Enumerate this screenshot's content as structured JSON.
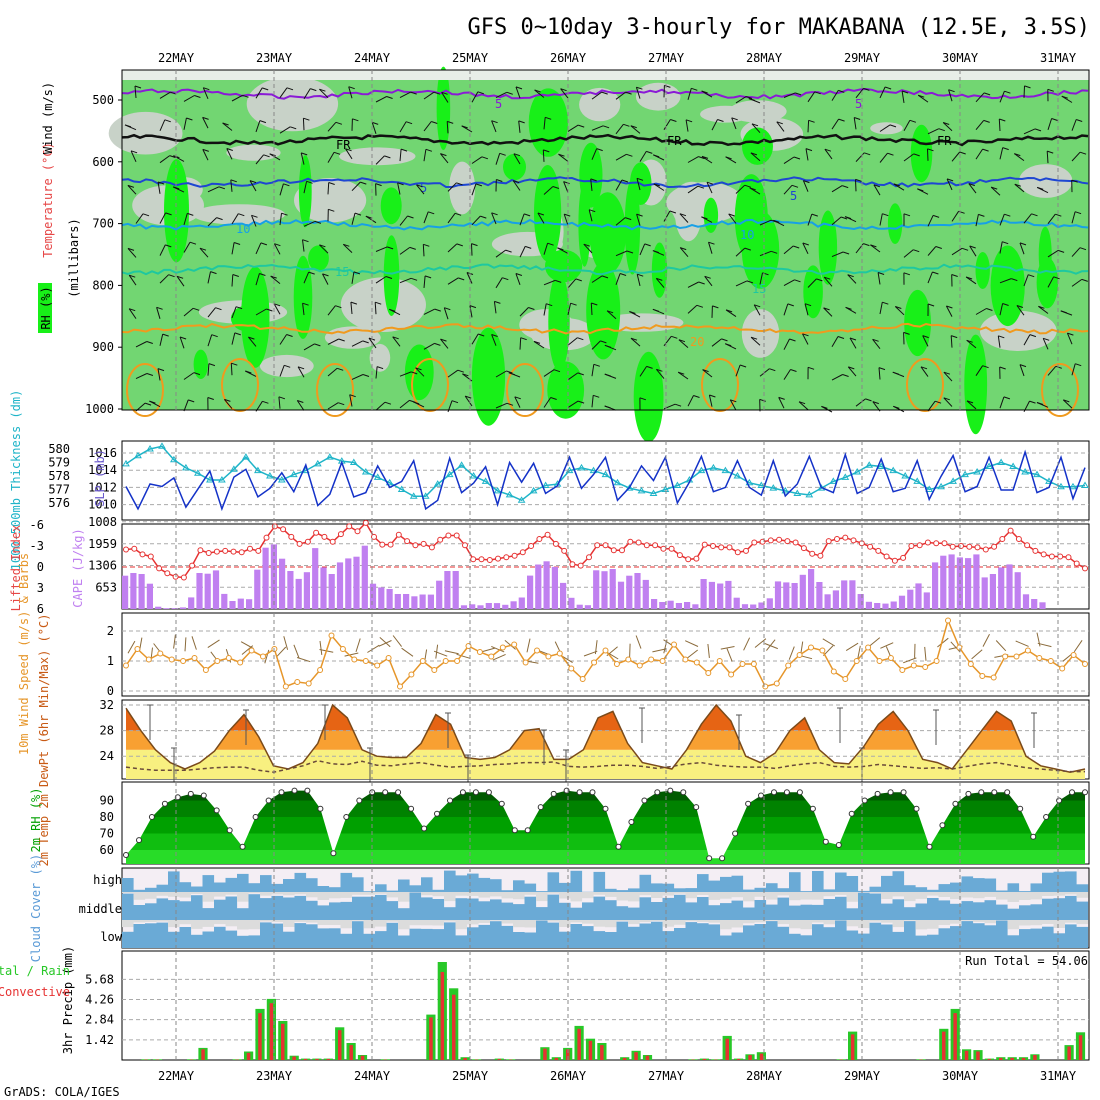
{
  "title": "GFS 0~10day 3-hourly for MAKABANA (12.5E, 3.5S)",
  "credit": "GrADS: COLA/IGES",
  "run_total_label": "Run Total = 54.06",
  "colors": {
    "rh_green_light": "#72d672",
    "rh_green_bright": "#18f018",
    "rh_grey": "#c8d2c8",
    "temp_purple": "#8a1ad6",
    "temp_blue": "#1e46d2",
    "temp_cyan": "#17a0e6",
    "temp_teal": "#1ec8a0",
    "temp_orange": "#f09a1e",
    "slp_blue": "#1432c8",
    "thickness_cyan": "#1eb4c8",
    "lifted_red": "#e63232",
    "cape_purple": "#c080f0",
    "wind_orange": "#e6962a",
    "temp_fill_dark": "#e66414",
    "temp_fill_mid": "#f8a032",
    "temp_fill_light": "#f8f080",
    "rh2m_dark": "#009600",
    "cloud_blue": "#6aaad6",
    "cloud_grey": "#dcdcdc",
    "cloud_pale": "#f4eef4",
    "precip_green": "#28c828",
    "precip_red": "#e63232"
  },
  "chart_data": [
    {
      "id": "upper-air",
      "type": "heatmap",
      "ylabel_parts": [
        "RH (%)",
        "Temperature (°C)",
        "Wind (m/s)",
        "(millibars)"
      ],
      "ylim": [
        1000,
        450
      ],
      "yticks": [
        "500",
        "600",
        "700",
        "800",
        "900",
        "1000"
      ],
      "xlabels": [
        "22MAY",
        "23MAY",
        "24MAY",
        "25MAY",
        "26MAY",
        "27MAY",
        "28MAY",
        "29MAY",
        "30MAY",
        "31MAY"
      ],
      "freezing_label": "FR",
      "isotherm_labels": [
        "5",
        "5",
        "5",
        "5",
        "10",
        "10",
        "15",
        "15",
        "20"
      ],
      "isotherms": [
        {
          "value": 5,
          "level_mb": 490
        },
        {
          "value": 0,
          "level_mb": 565
        },
        {
          "value": -5,
          "level_mb": 633
        },
        {
          "value": 10,
          "level_mb": 702
        },
        {
          "value": 15,
          "level_mb": 774
        },
        {
          "value": 20,
          "level_mb": 870
        }
      ]
    },
    {
      "id": "slp-thickness",
      "type": "line",
      "ylabel_left": "1000-500mb Thickness (dm)",
      "ylabel_right": "SLP (mb)",
      "thickness_ticks": [
        "580",
        "579",
        "578",
        "577",
        "576"
      ],
      "slp_ticks": [
        "1016",
        "1014",
        "1012",
        "1010",
        "1008"
      ],
      "series": [
        {
          "name": "SLP",
          "values": [
            1012.1,
            1009.5,
            1012.4,
            1012.1,
            1013.1,
            1009.7,
            1011.8,
            1013.9,
            1009.5,
            1013.2,
            1014.1,
            1010.9,
            1011.9,
            1013.7,
            1011.5,
            1014.6,
            1009.9,
            1011.2,
            1014.9,
            1010.9,
            1011.4,
            1014.5,
            1012.0,
            1012.7,
            1015.1,
            1009.5,
            1010.5,
            1015.4,
            1011.4,
            1012.5,
            1014.4,
            1010.0,
            1014.9,
            1012.6,
            1014.8,
            1011.3,
            1012.2,
            1015.5,
            1011.9,
            1013.5,
            1015.5,
            1010.5,
            1012.0,
            1014.5,
            1012.8,
            1015.5,
            1010.2,
            1012.6,
            1015.6,
            1011.5,
            1012.0,
            1015.1,
            1012.0,
            1011.1,
            1015.1,
            1011.0,
            1012.4,
            1015.6,
            1012.0,
            1011.4,
            1015.8,
            1011.3,
            1012.0,
            1015.3,
            1011.5,
            1011.9,
            1015.1,
            1010.6,
            1013.3,
            1015.7,
            1011.5,
            1012.1,
            1015.5,
            1011.7,
            1011.7,
            1016.1,
            1011.4,
            1012.0,
            1015.5,
            1010.7,
            1014.3
          ]
        },
        {
          "name": "Thickness",
          "values": [
            578.9,
            579.5,
            580.0,
            580.2,
            579.2,
            578.6,
            578.2,
            577.7,
            577.7,
            578.5,
            579.4,
            578.4,
            578.0,
            577.7,
            578.1,
            578.4,
            578.9,
            579.4,
            579.1,
            579.0,
            578.3,
            577.9,
            577.5,
            577.0,
            576.5,
            576.5,
            577.4,
            578.1,
            578.8,
            578.0,
            577.6,
            576.9,
            576.6,
            576.2,
            576.9,
            577.3,
            577.4,
            578.4,
            578.6,
            578.4,
            578.1,
            577.5,
            577.1,
            576.9,
            576.7,
            577.0,
            577.3,
            577.7,
            578.4,
            578.6,
            578.4,
            578.0,
            577.5,
            577.3,
            577.1,
            576.9,
            576.7,
            576.6,
            577.1,
            577.6,
            577.9,
            578.3,
            578.8,
            578.7,
            578.4,
            578.0,
            577.6,
            577.0,
            577.2,
            577.6,
            578.1,
            578.3,
            578.7,
            579.0,
            578.7,
            578.3,
            578.1,
            577.6,
            577.2,
            577.2,
            577.3
          ]
        }
      ]
    },
    {
      "id": "stability",
      "type": "bar",
      "ylabel_left": "Lifted Index",
      "ylabel_right": "CAPE (J/kg)",
      "li_ticks": [
        "-6",
        "-3",
        "0",
        "3",
        "6"
      ],
      "cape_ticks": [
        "1959",
        "1306",
        "653"
      ],
      "series": [
        {
          "name": "Lifted Index",
          "values": [
            -2.5,
            -2.6,
            -1.8,
            -1.5,
            0.2,
            0.9,
            1.4,
            1.5,
            -0.2,
            -2.4,
            -2.0,
            -2.2,
            -2.3,
            -2.2,
            -2.1,
            -2.6,
            -2.3,
            -4.2,
            -5.8,
            -5.4,
            -4.3,
            -3.3,
            -3.6,
            -4.9,
            -4.3,
            -3.6,
            -4.7,
            -5.8,
            -5.1,
            -6.3,
            -4.3,
            -3.2,
            -3.2,
            -4.6,
            -3.7,
            -3.1,
            -3.3,
            -2.8,
            -3.9,
            -4.5,
            -4.5,
            -3.1,
            -1.1,
            -1.1,
            -1.0,
            -1.2,
            -1.4,
            -1.6,
            -2.1,
            -3.0,
            -4.0,
            -4.6,
            -3.3,
            -2.3,
            -0.4,
            -0.2,
            -1.4,
            -3.1,
            -3.1,
            -2.4,
            -2.4,
            -3.6,
            -3.5,
            -3.1,
            -3.1,
            -2.6,
            -2.6,
            -1.7,
            -1.1,
            -1.2,
            -3.2,
            -3.0,
            -2.8,
            -2.8,
            -2.1,
            -2.3,
            -3.5,
            -3.6,
            -3.8,
            -3.9,
            -3.7,
            -3.5,
            -2.7,
            -1.9,
            -1.6,
            -3.7,
            -4.0,
            -4.2,
            -3.8,
            -3.4,
            -2.9,
            -2.3,
            -1.5,
            -0.9,
            -1.3,
            -3.0,
            -3.1,
            -3.5,
            -3.4,
            -3.4,
            -2.9,
            -3.0,
            -2.9,
            -2.8,
            -2.5,
            -2.9,
            -4.0,
            -5.2,
            -4.0,
            -3.1,
            -2.3,
            -1.8,
            -1.5,
            -1.5,
            -1.4,
            -0.5,
            0.2
          ]
        },
        {
          "name": "CAPE",
          "values": [
            1000,
            1080,
            1051,
            760,
            70,
            24,
            26,
            47,
            347,
            1081,
            1060,
            1160,
            452,
            240,
            312,
            295,
            1180,
            1840,
            1940,
            1510,
            1140,
            905,
            1104,
            1830,
            1250,
            1050,
            1400,
            1520,
            1570,
            1900,
            760,
            650,
            600,
            450,
            450,
            380,
            434,
            432,
            850,
            1140,
            1140,
            110,
            140,
            110,
            180,
            177,
            126,
            231,
            344,
            1003,
            1335,
            1431,
            1264,
            785,
            336,
            130,
            113,
            1161,
            1136,
            1200,
            820,
            1000,
            1080,
            875,
            300,
            210,
            250,
            180,
            209,
            140,
            900,
            813,
            767,
            845,
            340,
            145,
            134,
            196,
            320,
            830,
            800,
            782,
            1026,
            1200,
            810,
            440,
            560,
            860,
            863,
            450,
            217,
            180,
            161,
            226,
            400,
            580,
            770,
            500,
            1400,
            1600,
            1640,
            1550,
            1530,
            1640,
            950,
            1050,
            1250,
            1340,
            1104,
            440,
            300,
            200,
            0,
            0,
            0,
            0,
            0
          ]
        }
      ]
    },
    {
      "id": "wind10m",
      "type": "line",
      "ylabel": "10m Wind Speed (m/s) & Barbs",
      "yticks": [
        "2",
        "1",
        "0"
      ],
      "ylim": [
        0,
        2.5
      ],
      "series": [
        {
          "name": "10m wind speed",
          "values": [
            0.85,
            1.4,
            1.05,
            1.25,
            1.05,
            1.0,
            1.1,
            0.7,
            1.0,
            1.1,
            0.95,
            1.35,
            1.15,
            1.4,
            0.15,
            0.3,
            0.25,
            0.7,
            1.85,
            1.4,
            1.05,
            1.0,
            0.85,
            1.1,
            0.15,
            0.55,
            1.0,
            0.7,
            1.0,
            1.0,
            1.5,
            1.3,
            1.15,
            1.45,
            1.55,
            0.95,
            1.35,
            1.15,
            1.25,
            0.75,
            0.4,
            0.95,
            1.35,
            0.9,
            1.05,
            0.85,
            1.05,
            1.0,
            1.55,
            1.05,
            0.95,
            0.6,
            1.0,
            0.55,
            0.9,
            0.9,
            0.15,
            0.25,
            0.85,
            1.2,
            1.45,
            1.35,
            0.65,
            0.4,
            1.0,
            1.45,
            1.0,
            1.1,
            0.7,
            0.85,
            0.8,
            1.0,
            2.35,
            1.45,
            0.9,
            0.5,
            0.45,
            1.15,
            1.15,
            1.35,
            1.1,
            1.0,
            0.75,
            1.2,
            0.9
          ]
        }
      ]
    },
    {
      "id": "temp2m",
      "type": "area",
      "ylabel": "2m Temp 2m DewPt (6hr Min/Max) (°C)",
      "yticks": [
        "32",
        "28",
        "24"
      ],
      "ylim": [
        20.5,
        33
      ],
      "series": [
        {
          "name": "2m Temp",
          "values": [
            31.5,
            28.0,
            25.0,
            23.0,
            22.0,
            23.0,
            24.8,
            28.0,
            30.5,
            27.0,
            22.5,
            22.0,
            23.0,
            26.0,
            32.0,
            30.0,
            25.0,
            24.0,
            23.8,
            23.8,
            26.0,
            30.5,
            29.0,
            23.8,
            23.5,
            23.8,
            25.0,
            28.0,
            28.3,
            23.5,
            23.5,
            25.0,
            30.0,
            31.0,
            26.0,
            23.0,
            22.5,
            22.0,
            25.0,
            29.0,
            32.0,
            29.5,
            24.0,
            23.0,
            24.5,
            28.0,
            30.0,
            25.0,
            23.0,
            22.8,
            25.5,
            29.0,
            31.0,
            28.0,
            23.5,
            23.0,
            22.0,
            25.0,
            28.0,
            31.0,
            29.5,
            24.0,
            22.5,
            22.0,
            21.5,
            22.0
          ]
        },
        {
          "name": "2m DewPt",
          "values": [
            22.3,
            22.0,
            21.8,
            21.8,
            21.8,
            22.0,
            22.2,
            22.3,
            22.3,
            21.8,
            21.5,
            22.0,
            22.5,
            23.3,
            22.8,
            22.7,
            23.2,
            22.6,
            22.5,
            22.8,
            23.0,
            22.6,
            22.3,
            22.4,
            22.5,
            22.7,
            22.8,
            23.0,
            23.0,
            23.1,
            22.4,
            22.3,
            22.4,
            22.6,
            22.6,
            22.4,
            22.1,
            22.4,
            22.8,
            23.0,
            22.6,
            22.4,
            22.3,
            22.3,
            22.1,
            22.5,
            22.8,
            23.0,
            22.4,
            22.3,
            22.4,
            22.7,
            22.5,
            22.3,
            22.1,
            22.2,
            22.0,
            22.4,
            22.8,
            23.0,
            22.6,
            22.2,
            22.0,
            21.8,
            21.6,
            21.6
          ]
        }
      ]
    },
    {
      "id": "rh2m",
      "type": "area",
      "ylabel": "2m RH (%)",
      "yticks": [
        "90",
        "80",
        "70",
        "60"
      ],
      "ylim": [
        52,
        98
      ],
      "series": [
        {
          "name": "2m RH",
          "values": [
            57,
            66,
            80,
            88,
            92,
            94,
            93,
            84,
            72,
            62,
            80,
            90,
            95,
            96,
            96,
            85,
            58,
            80,
            90,
            95,
            95,
            95,
            85,
            73,
            82,
            90,
            95,
            95,
            95,
            88,
            72,
            72,
            86,
            94,
            96,
            95,
            95,
            85,
            62,
            77,
            90,
            95,
            96,
            95,
            86,
            55,
            55,
            70,
            88,
            93,
            95,
            95,
            95,
            85,
            65,
            63,
            82,
            90,
            94,
            95,
            95,
            85,
            62,
            75,
            88,
            94,
            95,
            95,
            95,
            85,
            68,
            80,
            90,
            95,
            95
          ]
        }
      ]
    },
    {
      "id": "cloud",
      "type": "heatmap",
      "ylabel": "Cloud Cover (%)",
      "rows": [
        "high",
        "middle",
        "low"
      ]
    },
    {
      "id": "precip",
      "type": "bar",
      "ylabel": "3hr Precip (mm)",
      "legend_left": [
        "Total / Rain",
        "Convective"
      ],
      "yticks": [
        "5.68",
        "4.26",
        "2.84",
        "1.42"
      ],
      "ylim": [
        0,
        7
      ],
      "series": [
        {
          "name": "Total / Rain",
          "values": [
            0,
            0.05,
            0.05,
            0,
            0,
            0.05,
            0.85,
            0,
            0,
            0.05,
            0.6,
            3.6,
            4.3,
            2.75,
            0.3,
            0.1,
            0.1,
            0.1,
            2.3,
            1.2,
            0.35,
            0,
            0.05,
            0,
            0,
            0,
            3.2,
            6.9,
            5.05,
            0.2,
            0.05,
            0,
            0.1,
            0.05,
            0,
            0,
            0.9,
            0.2,
            0.85,
            2.4,
            1.5,
            1.2,
            0,
            0.2,
            0.65,
            0.35,
            0,
            0,
            0,
            0.05,
            0.1,
            0.05,
            1.7,
            0.1,
            0.4,
            0.55,
            0,
            0,
            0,
            0,
            0,
            0,
            0.05,
            2.0,
            0,
            0,
            0,
            0,
            0,
            0.05,
            0,
            2.2,
            3.6,
            0.75,
            0.7,
            0.1,
            0.2,
            0.2,
            0.2,
            0.4,
            0,
            0,
            1.05,
            1.95
          ]
        },
        {
          "name": "Convective",
          "values": [
            0,
            0.03,
            0.03,
            0,
            0,
            0.03,
            0.75,
            0,
            0,
            0.03,
            0.5,
            3.3,
            4.0,
            2.55,
            0.25,
            0.08,
            0.08,
            0.08,
            2.1,
            1.05,
            0.3,
            0,
            0.03,
            0,
            0,
            0,
            3.0,
            6.2,
            4.6,
            0.15,
            0.03,
            0,
            0.08,
            0.03,
            0,
            0,
            0.8,
            0.15,
            0.75,
            2.2,
            1.35,
            1.05,
            0,
            0.15,
            0.55,
            0.3,
            0,
            0,
            0,
            0.03,
            0.08,
            0.03,
            1.5,
            0.08,
            0.35,
            0.45,
            0,
            0,
            0,
            0,
            0,
            0,
            0.03,
            1.8,
            0,
            0,
            0,
            0,
            0,
            0.03,
            0,
            2.0,
            3.3,
            0.65,
            0.6,
            0.08,
            0.15,
            0.15,
            0.15,
            0.35,
            0,
            0,
            0.95,
            1.75
          ]
        }
      ]
    }
  ]
}
